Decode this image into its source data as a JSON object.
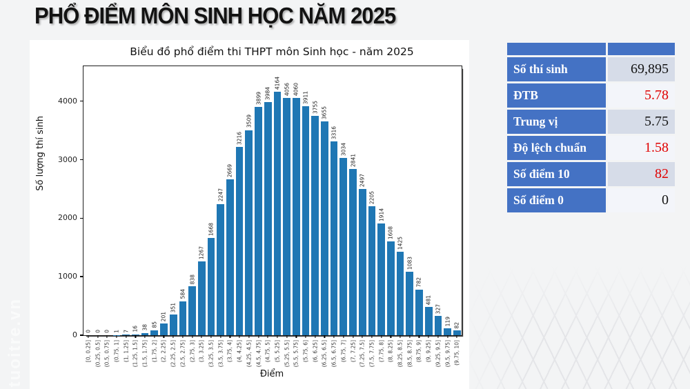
{
  "slide": {
    "title": "PHỔ ĐIỂM MÔN SINH HỌC NĂM 2025",
    "watermark": "tuoitre.vn"
  },
  "stats_table": {
    "accent_color": "#4472c4",
    "band_light": "#d6dce8",
    "band_white": "#f3f5fa",
    "red": "#e00000",
    "black": "#141414",
    "rows": [
      {
        "label": "Số thí sinh",
        "value": "69,895",
        "color": "black"
      },
      {
        "label": "ĐTB",
        "value": "5.78",
        "color": "red"
      },
      {
        "label": "Trung vị",
        "value": "5.75",
        "color": "black"
      },
      {
        "label": "Độ lệch chuẩn",
        "value": "1.58",
        "color": "red"
      },
      {
        "label": "Số điểm 10",
        "value": "82",
        "color": "red"
      },
      {
        "label": "Số điểm 0",
        "value": "0",
        "color": "black"
      }
    ]
  },
  "chart_data": {
    "type": "bar",
    "title": "Biểu đồ phổ điểm thi THPT môn Sinh học - năm 2025",
    "xlabel": "Điểm",
    "ylabel": "Số lượng thí sinh",
    "bar_color": "#1f77b4",
    "grid": false,
    "yticks": [
      0,
      1000,
      2000,
      3000,
      4000
    ],
    "ylim": [
      0,
      4600
    ],
    "categories": [
      "[0, 0.25]",
      "(0.25, 0.5]",
      "(0.5, 0.75]",
      "(0.75, 1]",
      "(1, 1.25]",
      "(1.25, 1.5]",
      "(1.5, 1.75]",
      "(1.75, 2]",
      "(2, 2.25]",
      "(2.25, 2.5]",
      "(2.5, 2.75]",
      "(2.75, 3]",
      "(3, 3.25]",
      "(3.25, 3.5]",
      "(3.5, 3.75]",
      "(3.75, 4]",
      "(4, 4.25]",
      "(4.25, 4.5]",
      "(4.5, 4.75]",
      "(4.75, 5]",
      "(5, 5.25]",
      "(5.25, 5.5]",
      "(5.5, 5.75]",
      "(5.75, 6]",
      "(6, 6.25]",
      "(6.25, 6.5]",
      "(6.5, 6.75]",
      "(6.75, 7]",
      "(7, 7.25]",
      "(7.25, 7.5]",
      "(7.5, 7.75]",
      "(7.75, 8]",
      "(8, 8.25]",
      "(8.25, 8.5]",
      "(8.5, 8.75]",
      "(8.75, 9]",
      "(9, 9.25]",
      "(9.25, 9.5]",
      "(9.5, 9.75]",
      "(9.75, 10]"
    ],
    "values": [
      0,
      0,
      0,
      1,
      7,
      16,
      38,
      85,
      201,
      351,
      584,
      838,
      1267,
      1668,
      2247,
      2669,
      3216,
      3509,
      3899,
      3984,
      4164,
      4056,
      4060,
      3911,
      3755,
      3655,
      3316,
      3034,
      2841,
      2497,
      2205,
      1914,
      1608,
      1425,
      1083,
      782,
      481,
      327,
      119,
      82
    ]
  }
}
